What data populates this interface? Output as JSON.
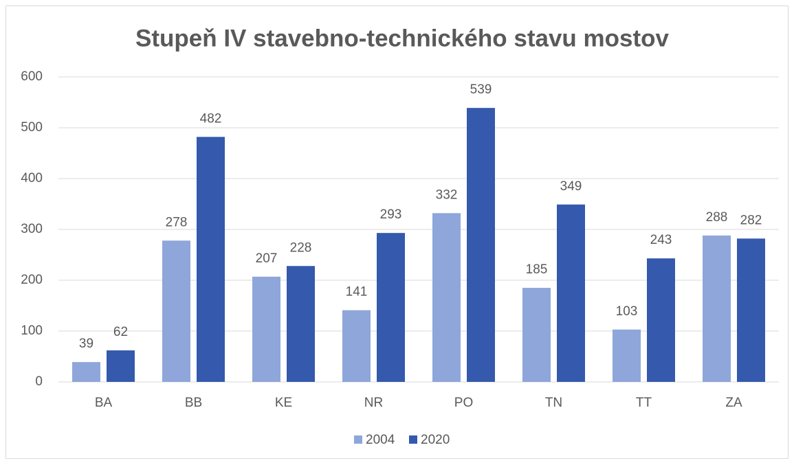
{
  "chart_data": {
    "type": "bar",
    "title": "Stupeň IV stavebno-technického stavu mostov",
    "categories": [
      "BA",
      "BB",
      "KE",
      "NR",
      "PO",
      "TN",
      "TT",
      "ZA"
    ],
    "series": [
      {
        "name": "2004",
        "color": "#8ea6da",
        "values": [
          39,
          278,
          207,
          141,
          332,
          185,
          103,
          288
        ]
      },
      {
        "name": "2020",
        "color": "#3459ad",
        "values": [
          62,
          482,
          228,
          293,
          539,
          349,
          243,
          282
        ]
      }
    ],
    "ylim": [
      0,
      600
    ],
    "yticks": [
      0,
      100,
      200,
      300,
      400,
      500,
      600
    ],
    "grid": true,
    "legend": "bottom"
  }
}
